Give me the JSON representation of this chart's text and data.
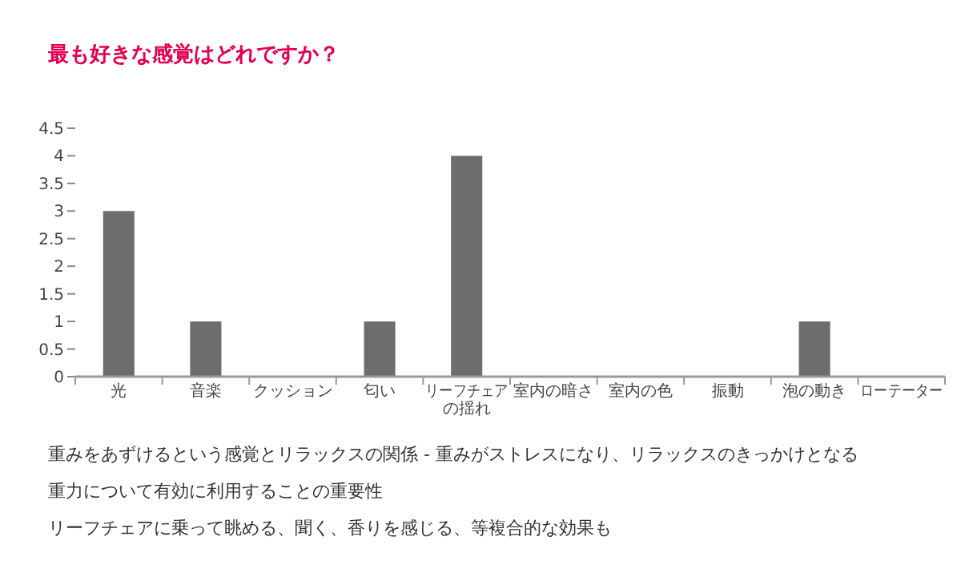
{
  "chart_data": {
    "type": "bar",
    "title": "最も好きな感覚はどれですか？",
    "categories": [
      "光",
      "音楽",
      "クッション",
      "匂い",
      "リーフチェアの揺れ",
      "室内の暗さ",
      "室内の色",
      "振動",
      "泡の動き",
      "ローテーター"
    ],
    "values": [
      3,
      1,
      0,
      1,
      4,
      0,
      0,
      0,
      1,
      0
    ],
    "color": "#6d6d6d",
    "ylim": [
      0,
      4.5
    ],
    "yticks": [
      0,
      0.5,
      1,
      1.5,
      2,
      2.5,
      3,
      3.5,
      4,
      4.5
    ],
    "grid": false,
    "annotations": [
      "重みをあずけるという感覚とリラックスの関係 - 重みがストレスになり、リラックスのきっかけとなる",
      "重力について有効に利用することの重要性",
      "リーフチェアに乗って眺める、聞く、香りを感じる、等複合的な効果も"
    ]
  }
}
